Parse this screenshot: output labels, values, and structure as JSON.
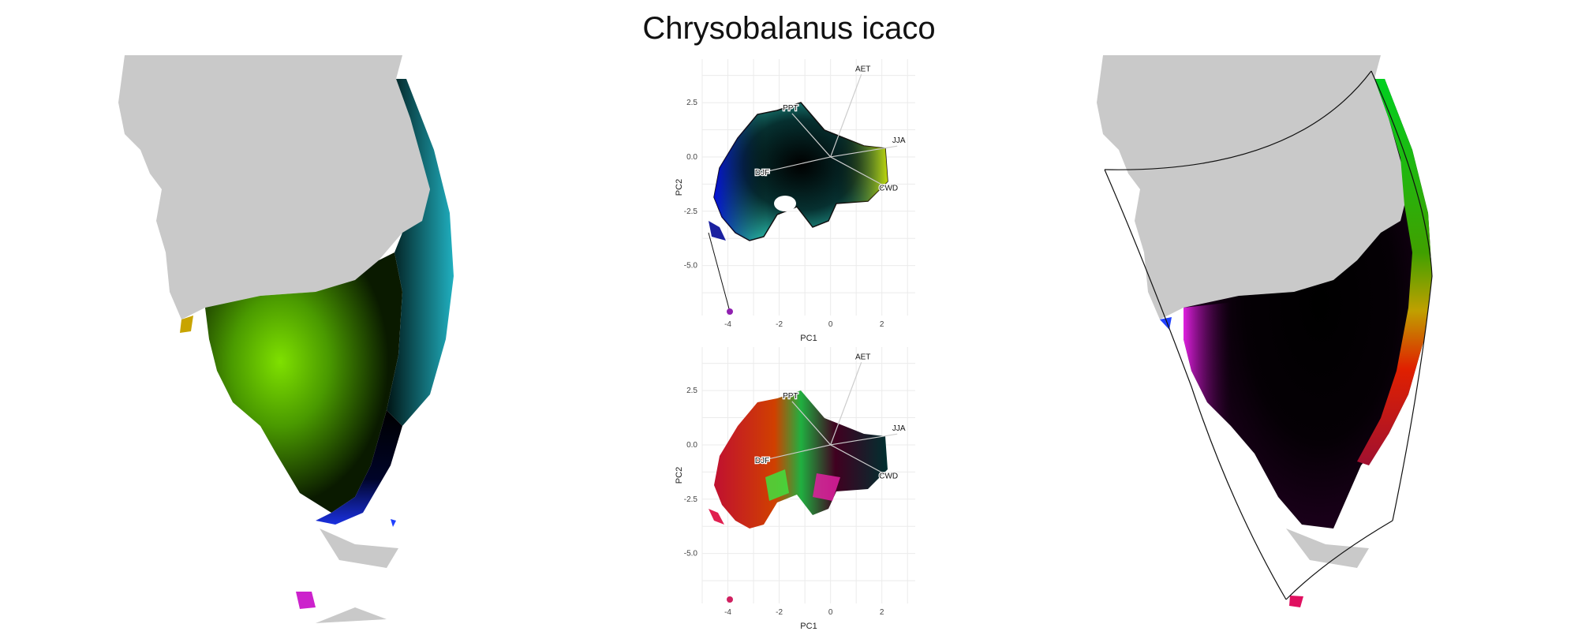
{
  "title": "Chrysobalanus icaco",
  "colors": {
    "land": "#c9c9c9",
    "gridline": "#ebebeb",
    "arrow": "#cccccc",
    "outline": "#111111"
  },
  "chart_data": [
    {
      "type": "scatter",
      "title": "",
      "xlabel": "PC1",
      "ylabel": "PC2",
      "xlim": [
        -5,
        3.3
      ],
      "ylim": [
        -7.3,
        4.5
      ],
      "x_ticks": [
        "-4",
        "-2",
        "0",
        "2"
      ],
      "y_ticks": [
        "2.5",
        "0.0",
        "-2.5",
        "-5.0"
      ],
      "grid": true,
      "coloring": "rgb-wheel",
      "loadings": [
        {
          "label": "AET",
          "x": 1.2,
          "y": 3.8
        },
        {
          "label": "PPT",
          "x": -1.5,
          "y": 2.0
        },
        {
          "label": "JJA",
          "x": 2.6,
          "y": 0.5
        },
        {
          "label": "DJF",
          "x": -2.6,
          "y": -0.7
        },
        {
          "label": "CWD",
          "x": 2.2,
          "y": -1.4
        }
      ]
    },
    {
      "type": "scatter",
      "title": "",
      "xlabel": "PC1",
      "ylabel": "PC2",
      "xlim": [
        -5,
        3.3
      ],
      "ylim": [
        -7.3,
        4.5
      ],
      "x_ticks": [
        "-4",
        "-2",
        "0",
        "2"
      ],
      "y_ticks": [
        "2.5",
        "0.0",
        "-2.5",
        "-5.0"
      ],
      "grid": true,
      "coloring": "sampled-points",
      "loadings": [
        {
          "label": "AET",
          "x": 1.2,
          "y": 3.8
        },
        {
          "label": "PPT",
          "x": -1.5,
          "y": 2.0
        },
        {
          "label": "JJA",
          "x": 2.6,
          "y": 0.5
        },
        {
          "label": "DJF",
          "x": -2.6,
          "y": -0.7
        },
        {
          "label": "CWD",
          "x": 2.2,
          "y": -1.4
        }
      ]
    }
  ]
}
